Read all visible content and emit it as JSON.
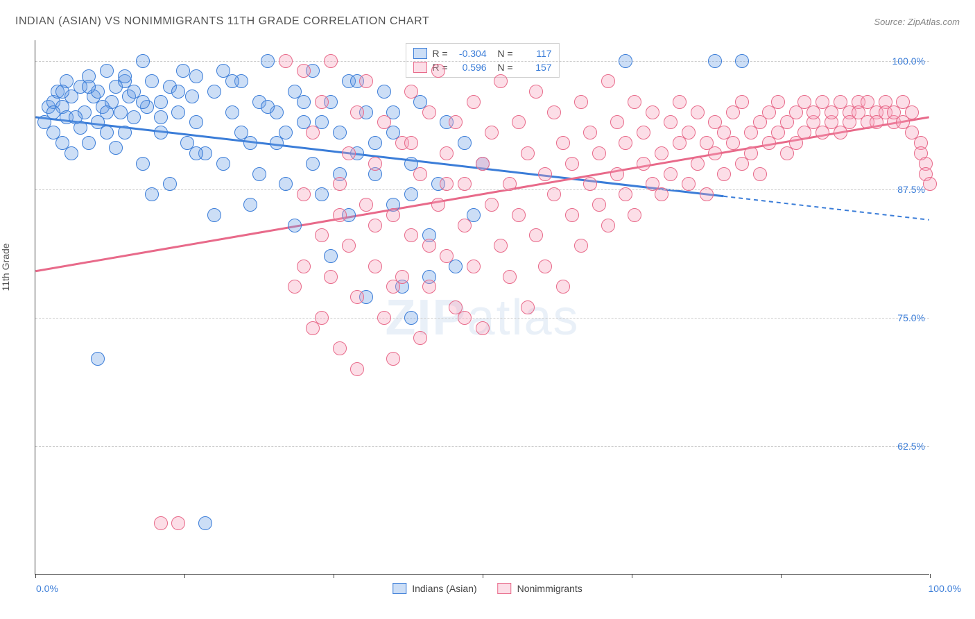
{
  "title": "INDIAN (ASIAN) VS NONIMMIGRANTS 11TH GRADE CORRELATION CHART",
  "source": "Source: ZipAtlas.com",
  "ylabel": "11th Grade",
  "watermark": {
    "prefix": "ZIP",
    "suffix": "atlas"
  },
  "chart": {
    "type": "scatter",
    "background_color": "#ffffff",
    "grid_color": "#cccccc",
    "axis_color": "#444444",
    "xlim": [
      0,
      100
    ],
    "ylim": [
      50,
      102
    ],
    "ytick_values": [
      62.5,
      75.0,
      87.5,
      100.0
    ],
    "ytick_labels": [
      "62.5%",
      "75.0%",
      "87.5%",
      "100.0%"
    ],
    "xtick_positions_pct": [
      0,
      16.7,
      33.3,
      50,
      66.7,
      83.3,
      100
    ],
    "xtick_labels": {
      "left": "0.0%",
      "right": "100.0%"
    },
    "marker_radius": 10,
    "marker_stroke": 1.5,
    "marker_fill_opacity": 0.35,
    "label_fontsize": 14,
    "tick_color": "#3b7dd8"
  },
  "series": [
    {
      "key": "indians",
      "label": "Indians (Asian)",
      "color_stroke": "#3b7dd8",
      "color_fill": "rgba(110,160,230,0.35)",
      "stats": {
        "R": "-0.304",
        "N": "117"
      },
      "trend": {
        "y_at_x0": 94.5,
        "y_at_x100": 84.5,
        "solid_until_pct": 77
      },
      "points": [
        [
          1,
          94
        ],
        [
          1.5,
          95.5
        ],
        [
          2,
          93
        ],
        [
          2,
          96
        ],
        [
          2.5,
          97
        ],
        [
          3,
          95.5
        ],
        [
          3,
          92
        ],
        [
          3.5,
          98
        ],
        [
          3.5,
          94.5
        ],
        [
          4,
          96.5
        ],
        [
          4,
          91
        ],
        [
          5,
          97.5
        ],
        [
          5,
          93.5
        ],
        [
          5.5,
          95
        ],
        [
          6,
          98.5
        ],
        [
          6,
          92
        ],
        [
          6.5,
          96.5
        ],
        [
          7,
          94
        ],
        [
          7,
          97
        ],
        [
          7.5,
          95.5
        ],
        [
          8,
          99
        ],
        [
          8,
          93
        ],
        [
          8.5,
          96
        ],
        [
          9,
          97.5
        ],
        [
          9,
          91.5
        ],
        [
          9.5,
          95
        ],
        [
          10,
          98
        ],
        [
          10,
          93
        ],
        [
          10.5,
          96.5
        ],
        [
          11,
          94.5
        ],
        [
          11,
          97
        ],
        [
          12,
          100
        ],
        [
          12,
          90
        ],
        [
          12.5,
          95.5
        ],
        [
          13,
          98
        ],
        [
          13,
          87
        ],
        [
          14,
          96
        ],
        [
          14,
          93
        ],
        [
          15,
          97.5
        ],
        [
          15,
          88
        ],
        [
          16,
          95
        ],
        [
          16.5,
          99
        ],
        [
          17,
          92
        ],
        [
          17.5,
          96.5
        ],
        [
          18,
          94
        ],
        [
          18,
          98.5
        ],
        [
          19,
          91
        ],
        [
          20,
          97
        ],
        [
          20,
          85
        ],
        [
          21,
          99
        ],
        [
          21,
          90
        ],
        [
          22,
          95
        ],
        [
          23,
          93
        ],
        [
          23,
          98
        ],
        [
          24,
          86
        ],
        [
          25,
          96
        ],
        [
          25,
          89
        ],
        [
          26,
          100
        ],
        [
          27,
          92
        ],
        [
          27,
          95
        ],
        [
          28,
          88
        ],
        [
          29,
          97
        ],
        [
          29,
          84
        ],
        [
          30,
          94
        ],
        [
          31,
          99
        ],
        [
          31,
          90
        ],
        [
          32,
          87
        ],
        [
          33,
          96
        ],
        [
          33,
          81
        ],
        [
          34,
          93
        ],
        [
          35,
          98
        ],
        [
          35,
          85
        ],
        [
          36,
          91
        ],
        [
          37,
          95
        ],
        [
          37,
          77
        ],
        [
          38,
          89
        ],
        [
          39,
          97
        ],
        [
          40,
          86
        ],
        [
          40,
          93
        ],
        [
          41,
          78
        ],
        [
          42,
          90
        ],
        [
          42,
          75
        ],
        [
          43,
          96
        ],
        [
          44,
          83
        ],
        [
          45,
          88
        ],
        [
          46,
          94
        ],
        [
          47,
          80
        ],
        [
          48,
          92
        ],
        [
          49,
          85
        ],
        [
          50,
          90
        ],
        [
          7,
          71
        ],
        [
          19,
          55
        ],
        [
          66,
          100
        ],
        [
          76,
          100
        ],
        [
          79,
          100
        ],
        [
          2,
          95
        ],
        [
          3,
          97
        ],
        [
          4.5,
          94.5
        ],
        [
          6,
          97.5
        ],
        [
          8,
          95
        ],
        [
          10,
          98.5
        ],
        [
          12,
          96
        ],
        [
          14,
          94.5
        ],
        [
          16,
          97
        ],
        [
          18,
          91
        ],
        [
          22,
          98
        ],
        [
          24,
          92
        ],
        [
          26,
          95.5
        ],
        [
          28,
          93
        ],
        [
          30,
          96
        ],
        [
          32,
          94
        ],
        [
          34,
          89
        ],
        [
          36,
          98
        ],
        [
          38,
          92
        ],
        [
          40,
          95
        ],
        [
          42,
          87
        ],
        [
          44,
          79
        ]
      ]
    },
    {
      "key": "nonimmigrants",
      "label": "Nonimmigrants",
      "color_stroke": "#e86a8a",
      "color_fill": "rgba(245,160,185,0.35)",
      "stats": {
        "R": "0.596",
        "N": "157"
      },
      "trend": {
        "y_at_x0": 79.5,
        "y_at_x100": 94.5,
        "solid_until_pct": 100
      },
      "points": [
        [
          14,
          55
        ],
        [
          16,
          55
        ],
        [
          28,
          100
        ],
        [
          29,
          78
        ],
        [
          30,
          87
        ],
        [
          30,
          99
        ],
        [
          31,
          74
        ],
        [
          31,
          93
        ],
        [
          32,
          83
        ],
        [
          32,
          96
        ],
        [
          33,
          79
        ],
        [
          33,
          100
        ],
        [
          34,
          88
        ],
        [
          34,
          72
        ],
        [
          35,
          91
        ],
        [
          35,
          82
        ],
        [
          36,
          95
        ],
        [
          36,
          77
        ],
        [
          37,
          86
        ],
        [
          37,
          98
        ],
        [
          38,
          80
        ],
        [
          38,
          90
        ],
        [
          39,
          75
        ],
        [
          39,
          94
        ],
        [
          40,
          85
        ],
        [
          40,
          71
        ],
        [
          41,
          92
        ],
        [
          41,
          79
        ],
        [
          42,
          97
        ],
        [
          42,
          83
        ],
        [
          43,
          73
        ],
        [
          43,
          89
        ],
        [
          44,
          95
        ],
        [
          44,
          78
        ],
        [
          45,
          86
        ],
        [
          45,
          99
        ],
        [
          46,
          81
        ],
        [
          46,
          91
        ],
        [
          47,
          76
        ],
        [
          47,
          94
        ],
        [
          48,
          84
        ],
        [
          48,
          88
        ],
        [
          49,
          80
        ],
        [
          49,
          96
        ],
        [
          50,
          90
        ],
        [
          50,
          74
        ],
        [
          51,
          86
        ],
        [
          51,
          93
        ],
        [
          52,
          82
        ],
        [
          52,
          98
        ],
        [
          53,
          88
        ],
        [
          53,
          79
        ],
        [
          54,
          94
        ],
        [
          54,
          85
        ],
        [
          55,
          76
        ],
        [
          55,
          91
        ],
        [
          56,
          97
        ],
        [
          56,
          83
        ],
        [
          57,
          89
        ],
        [
          57,
          80
        ],
        [
          58,
          95
        ],
        [
          58,
          87
        ],
        [
          59,
          92
        ],
        [
          59,
          78
        ],
        [
          60,
          90
        ],
        [
          60,
          85
        ],
        [
          61,
          96
        ],
        [
          61,
          82
        ],
        [
          62,
          88
        ],
        [
          62,
          93
        ],
        [
          63,
          86
        ],
        [
          63,
          91
        ],
        [
          64,
          98
        ],
        [
          64,
          84
        ],
        [
          65,
          89
        ],
        [
          65,
          94
        ],
        [
          66,
          87
        ],
        [
          66,
          92
        ],
        [
          67,
          85
        ],
        [
          67,
          96
        ],
        [
          68,
          90
        ],
        [
          68,
          93
        ],
        [
          69,
          88
        ],
        [
          69,
          95
        ],
        [
          70,
          91
        ],
        [
          70,
          87
        ],
        [
          71,
          94
        ],
        [
          71,
          89
        ],
        [
          72,
          92
        ],
        [
          72,
          96
        ],
        [
          73,
          88
        ],
        [
          73,
          93
        ],
        [
          74,
          90
        ],
        [
          74,
          95
        ],
        [
          75,
          92
        ],
        [
          75,
          87
        ],
        [
          76,
          94
        ],
        [
          76,
          91
        ],
        [
          77,
          93
        ],
        [
          77,
          89
        ],
        [
          78,
          95
        ],
        [
          78,
          92
        ],
        [
          79,
          90
        ],
        [
          79,
          96
        ],
        [
          80,
          93
        ],
        [
          80,
          91
        ],
        [
          81,
          94
        ],
        [
          81,
          89
        ],
        [
          82,
          95
        ],
        [
          82,
          92
        ],
        [
          83,
          93
        ],
        [
          83,
          96
        ],
        [
          84,
          91
        ],
        [
          84,
          94
        ],
        [
          85,
          95
        ],
        [
          85,
          92
        ],
        [
          86,
          96
        ],
        [
          86,
          93
        ],
        [
          87,
          94
        ],
        [
          87,
          95
        ],
        [
          88,
          93
        ],
        [
          88,
          96
        ],
        [
          89,
          94
        ],
        [
          89,
          95
        ],
        [
          90,
          96
        ],
        [
          90,
          93
        ],
        [
          91,
          95
        ],
        [
          91,
          94
        ],
        [
          92,
          96
        ],
        [
          92,
          95
        ],
        [
          93,
          94
        ],
        [
          93,
          96
        ],
        [
          94,
          95
        ],
        [
          94,
          94
        ],
        [
          95,
          96
        ],
        [
          95,
          95
        ],
        [
          96,
          94
        ],
        [
          96,
          95
        ],
        [
          97,
          96
        ],
        [
          97,
          94
        ],
        [
          98,
          95
        ],
        [
          98,
          93
        ],
        [
          99,
          92
        ],
        [
          99,
          91
        ],
        [
          99.5,
          90
        ],
        [
          99.5,
          89
        ],
        [
          100,
          88
        ],
        [
          30,
          80
        ],
        [
          32,
          75
        ],
        [
          34,
          85
        ],
        [
          36,
          70
        ],
        [
          38,
          84
        ],
        [
          40,
          78
        ],
        [
          42,
          92
        ],
        [
          44,
          82
        ],
        [
          46,
          88
        ],
        [
          48,
          75
        ]
      ]
    }
  ]
}
